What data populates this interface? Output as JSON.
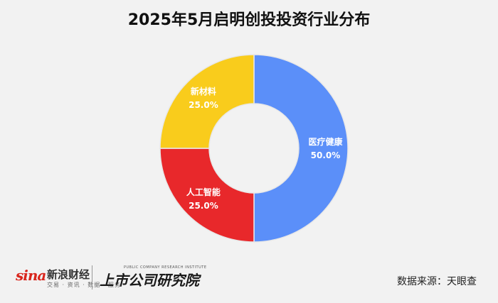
{
  "chart_data": {
    "type": "pie",
    "title": "2025年5月启明创投投资行业分布",
    "slices": [
      {
        "label": "医疗健康",
        "value": 50.0,
        "value_label": "50.0%",
        "color": "#5b8ff9"
      },
      {
        "label": "人工智能",
        "value": 25.0,
        "value_label": "25.0%",
        "color": "#e8282b"
      },
      {
        "label": "新材料",
        "value": 25.0,
        "value_label": "25.0%",
        "color": "#f9cc1c"
      }
    ],
    "donut": true,
    "legend": "none"
  },
  "branding": {
    "sina_logo": "sina",
    "sina_name": "新浪财经",
    "sina_sub": "交易 · 资讯 · 数据 · 服务",
    "institute_en": "PUBLIC COMPANY RESEARCH INSTITUTE",
    "institute": "上市公司研究院"
  },
  "source": "数据来源：天眼查"
}
